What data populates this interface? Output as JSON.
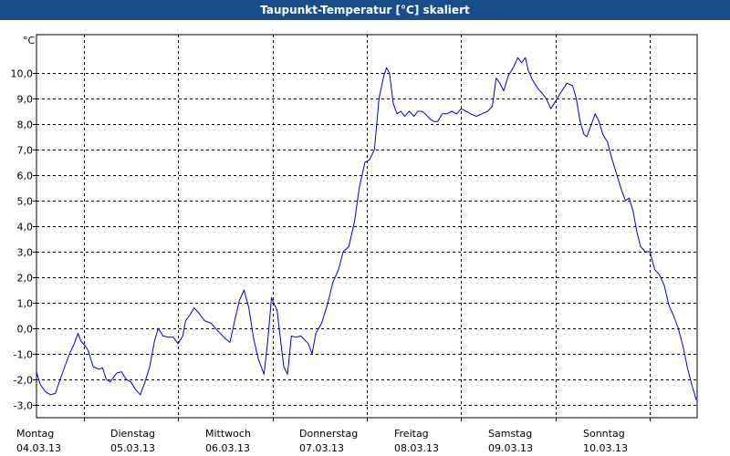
{
  "chart_data": {
    "type": "line",
    "title": "Taupunkt-Temperatur [°C] skaliert",
    "unit_label": "°C",
    "ylim": [
      -3.5,
      11.5
    ],
    "y_ticks": [
      -3,
      -2,
      -1,
      0,
      1,
      2,
      3,
      4,
      5,
      6,
      7,
      8,
      9,
      10
    ],
    "y_tick_labels": [
      "-3,0",
      "-2,0",
      "-1,0",
      "0,0",
      "1,0",
      "2,0",
      "3,0",
      "4,0",
      "5,0",
      "6,0",
      "7,0",
      "8,0",
      "9,0",
      "10,0"
    ],
    "xlim": [
      0,
      7
    ],
    "x_ticks": [
      {
        "day": "Montag",
        "date": "04.03.13"
      },
      {
        "day": "Dienstag",
        "date": "05.03.13"
      },
      {
        "day": "Mittwoch",
        "date": "06.03.13"
      },
      {
        "day": "Donnerstag",
        "date": "07.03.13"
      },
      {
        "day": "Freitag",
        "date": "08.03.13"
      },
      {
        "day": "Samstag",
        "date": "09.03.13"
      },
      {
        "day": "Sonntag",
        "date": "10.03.13"
      }
    ],
    "grid": true,
    "line_color": "#0000cc",
    "series": [
      {
        "values": [
          [
            0.0,
            -1.7
          ],
          [
            0.04,
            -2.2
          ],
          [
            0.1,
            -2.5
          ],
          [
            0.15,
            -2.6
          ],
          [
            0.2,
            -2.55
          ],
          [
            0.25,
            -2.0
          ],
          [
            0.3,
            -1.5
          ],
          [
            0.35,
            -1.0
          ],
          [
            0.4,
            -0.6
          ],
          [
            0.44,
            -0.2
          ],
          [
            0.47,
            -0.5
          ],
          [
            0.52,
            -0.7
          ],
          [
            0.55,
            -0.9
          ],
          [
            0.6,
            -1.5
          ],
          [
            0.66,
            -1.6
          ],
          [
            0.7,
            -1.55
          ],
          [
            0.74,
            -2.0
          ],
          [
            0.78,
            -2.1
          ],
          [
            0.85,
            -1.75
          ],
          [
            0.9,
            -1.7
          ],
          [
            0.95,
            -2.0
          ],
          [
            1.0,
            -2.1
          ],
          [
            1.05,
            -2.4
          ],
          [
            1.1,
            -2.6
          ],
          [
            1.15,
            -2.1
          ],
          [
            1.2,
            -1.5
          ],
          [
            1.25,
            -0.5
          ],
          [
            1.29,
            0.0
          ],
          [
            1.34,
            -0.3
          ],
          [
            1.4,
            -0.35
          ],
          [
            1.45,
            -0.35
          ],
          [
            1.5,
            -0.6
          ],
          [
            1.55,
            -0.3
          ],
          [
            1.58,
            0.3
          ],
          [
            1.62,
            0.5
          ],
          [
            1.67,
            0.8
          ],
          [
            1.72,
            0.6
          ],
          [
            1.78,
            0.3
          ],
          [
            1.85,
            0.2
          ],
          [
            1.92,
            -0.1
          ],
          [
            2.0,
            -0.4
          ],
          [
            2.05,
            -0.55
          ],
          [
            2.1,
            0.3
          ],
          [
            2.15,
            1.1
          ],
          [
            2.2,
            1.5
          ],
          [
            2.25,
            0.8
          ],
          [
            2.3,
            -0.4
          ],
          [
            2.35,
            -1.2
          ],
          [
            2.41,
            -1.8
          ],
          [
            2.45,
            -0.5
          ],
          [
            2.49,
            1.2
          ],
          [
            2.55,
            0.7
          ],
          [
            2.59,
            -0.6
          ],
          [
            2.62,
            -1.5
          ],
          [
            2.66,
            -1.8
          ],
          [
            2.7,
            -0.3
          ],
          [
            2.75,
            -0.35
          ],
          [
            2.8,
            -0.3
          ],
          [
            2.88,
            -0.6
          ],
          [
            2.92,
            -1.0
          ],
          [
            2.96,
            -0.2
          ],
          [
            3.02,
            0.2
          ],
          [
            3.08,
            0.9
          ],
          [
            3.14,
            1.8
          ],
          [
            3.2,
            2.3
          ],
          [
            3.25,
            3.0
          ],
          [
            3.31,
            3.2
          ],
          [
            3.37,
            4.2
          ],
          [
            3.42,
            5.5
          ],
          [
            3.48,
            6.5
          ],
          [
            3.53,
            6.6
          ],
          [
            3.58,
            7.0
          ],
          [
            3.63,
            9.0
          ],
          [
            3.68,
            9.9
          ],
          [
            3.71,
            10.2
          ],
          [
            3.74,
            10.0
          ],
          [
            3.78,
            8.8
          ],
          [
            3.82,
            8.4
          ],
          [
            3.86,
            8.5
          ],
          [
            3.9,
            8.3
          ],
          [
            3.95,
            8.5
          ],
          [
            4.0,
            8.3
          ],
          [
            4.04,
            8.5
          ],
          [
            4.08,
            8.5
          ],
          [
            4.12,
            8.4
          ],
          [
            4.17,
            8.2
          ],
          [
            4.21,
            8.1
          ],
          [
            4.25,
            8.1
          ],
          [
            4.3,
            8.4
          ],
          [
            4.35,
            8.4
          ],
          [
            4.4,
            8.5
          ],
          [
            4.45,
            8.4
          ],
          [
            4.5,
            8.6
          ],
          [
            4.55,
            8.5
          ],
          [
            4.6,
            8.4
          ],
          [
            4.66,
            8.3
          ],
          [
            4.72,
            8.4
          ],
          [
            4.78,
            8.5
          ],
          [
            4.83,
            8.7
          ],
          [
            4.87,
            9.8
          ],
          [
            4.91,
            9.6
          ],
          [
            4.95,
            9.3
          ],
          [
            5.0,
            9.9
          ],
          [
            5.05,
            10.2
          ],
          [
            5.1,
            10.6
          ],
          [
            5.14,
            10.4
          ],
          [
            5.18,
            10.6
          ],
          [
            5.21,
            10.1
          ],
          [
            5.26,
            9.7
          ],
          [
            5.31,
            9.4
          ],
          [
            5.36,
            9.2
          ],
          [
            5.4,
            9.0
          ],
          [
            5.45,
            8.6
          ],
          [
            5.5,
            8.9
          ],
          [
            5.55,
            9.2
          ],
          [
            5.62,
            9.6
          ],
          [
            5.68,
            9.5
          ],
          [
            5.72,
            9.0
          ],
          [
            5.76,
            8.1
          ],
          [
            5.8,
            7.6
          ],
          [
            5.83,
            7.5
          ],
          [
            5.88,
            8.0
          ],
          [
            5.92,
            8.4
          ],
          [
            5.96,
            8.1
          ],
          [
            6.0,
            7.6
          ],
          [
            6.05,
            7.3
          ],
          [
            6.1,
            6.6
          ],
          [
            6.15,
            6.0
          ],
          [
            6.2,
            5.4
          ],
          [
            6.24,
            5.0
          ],
          [
            6.28,
            5.1
          ],
          [
            6.32,
            4.6
          ],
          [
            6.36,
            3.8
          ],
          [
            6.4,
            3.2
          ],
          [
            6.45,
            3.0
          ],
          [
            6.5,
            3.0
          ],
          [
            6.55,
            2.3
          ],
          [
            6.6,
            2.1
          ],
          [
            6.65,
            1.7
          ],
          [
            6.7,
            0.9
          ],
          [
            6.75,
            0.5
          ],
          [
            6.8,
            0.0
          ],
          [
            6.85,
            -0.7
          ],
          [
            6.9,
            -1.6
          ],
          [
            6.95,
            -2.3
          ],
          [
            6.99,
            -2.8
          ]
        ]
      }
    ]
  }
}
